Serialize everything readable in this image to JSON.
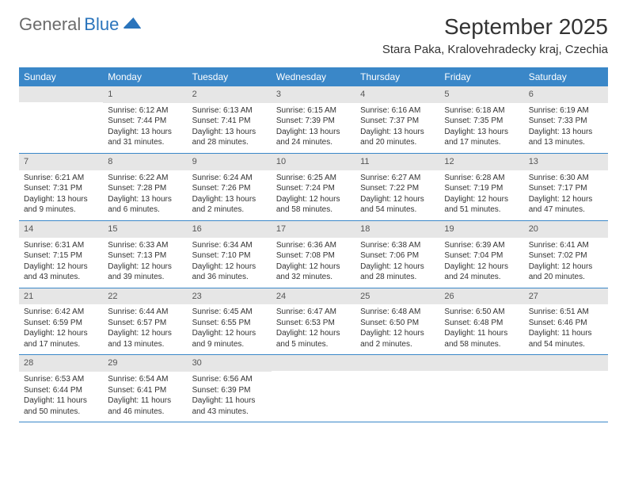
{
  "logo": {
    "text1": "General",
    "text2": "Blue"
  },
  "title": "September 2025",
  "subtitle": "Stara Paka, Kralovehradecky kraj, Czechia",
  "colors": {
    "header_bg": "#3a87c8",
    "header_fg": "#ffffff",
    "daynum_bg": "#e6e6e6",
    "daynum_fg": "#555555",
    "border": "#3a87c8",
    "logo_gray": "#6b6b6b",
    "logo_blue": "#2a74bc"
  },
  "day_headers": [
    "Sunday",
    "Monday",
    "Tuesday",
    "Wednesday",
    "Thursday",
    "Friday",
    "Saturday"
  ],
  "weeks": [
    [
      {
        "n": "",
        "sunrise": "",
        "sunset": "",
        "daylight": ""
      },
      {
        "n": "1",
        "sunrise": "Sunrise: 6:12 AM",
        "sunset": "Sunset: 7:44 PM",
        "daylight": "Daylight: 13 hours and 31 minutes."
      },
      {
        "n": "2",
        "sunrise": "Sunrise: 6:13 AM",
        "sunset": "Sunset: 7:41 PM",
        "daylight": "Daylight: 13 hours and 28 minutes."
      },
      {
        "n": "3",
        "sunrise": "Sunrise: 6:15 AM",
        "sunset": "Sunset: 7:39 PM",
        "daylight": "Daylight: 13 hours and 24 minutes."
      },
      {
        "n": "4",
        "sunrise": "Sunrise: 6:16 AM",
        "sunset": "Sunset: 7:37 PM",
        "daylight": "Daylight: 13 hours and 20 minutes."
      },
      {
        "n": "5",
        "sunrise": "Sunrise: 6:18 AM",
        "sunset": "Sunset: 7:35 PM",
        "daylight": "Daylight: 13 hours and 17 minutes."
      },
      {
        "n": "6",
        "sunrise": "Sunrise: 6:19 AM",
        "sunset": "Sunset: 7:33 PM",
        "daylight": "Daylight: 13 hours and 13 minutes."
      }
    ],
    [
      {
        "n": "7",
        "sunrise": "Sunrise: 6:21 AM",
        "sunset": "Sunset: 7:31 PM",
        "daylight": "Daylight: 13 hours and 9 minutes."
      },
      {
        "n": "8",
        "sunrise": "Sunrise: 6:22 AM",
        "sunset": "Sunset: 7:28 PM",
        "daylight": "Daylight: 13 hours and 6 minutes."
      },
      {
        "n": "9",
        "sunrise": "Sunrise: 6:24 AM",
        "sunset": "Sunset: 7:26 PM",
        "daylight": "Daylight: 13 hours and 2 minutes."
      },
      {
        "n": "10",
        "sunrise": "Sunrise: 6:25 AM",
        "sunset": "Sunset: 7:24 PM",
        "daylight": "Daylight: 12 hours and 58 minutes."
      },
      {
        "n": "11",
        "sunrise": "Sunrise: 6:27 AM",
        "sunset": "Sunset: 7:22 PM",
        "daylight": "Daylight: 12 hours and 54 minutes."
      },
      {
        "n": "12",
        "sunrise": "Sunrise: 6:28 AM",
        "sunset": "Sunset: 7:19 PM",
        "daylight": "Daylight: 12 hours and 51 minutes."
      },
      {
        "n": "13",
        "sunrise": "Sunrise: 6:30 AM",
        "sunset": "Sunset: 7:17 PM",
        "daylight": "Daylight: 12 hours and 47 minutes."
      }
    ],
    [
      {
        "n": "14",
        "sunrise": "Sunrise: 6:31 AM",
        "sunset": "Sunset: 7:15 PM",
        "daylight": "Daylight: 12 hours and 43 minutes."
      },
      {
        "n": "15",
        "sunrise": "Sunrise: 6:33 AM",
        "sunset": "Sunset: 7:13 PM",
        "daylight": "Daylight: 12 hours and 39 minutes."
      },
      {
        "n": "16",
        "sunrise": "Sunrise: 6:34 AM",
        "sunset": "Sunset: 7:10 PM",
        "daylight": "Daylight: 12 hours and 36 minutes."
      },
      {
        "n": "17",
        "sunrise": "Sunrise: 6:36 AM",
        "sunset": "Sunset: 7:08 PM",
        "daylight": "Daylight: 12 hours and 32 minutes."
      },
      {
        "n": "18",
        "sunrise": "Sunrise: 6:38 AM",
        "sunset": "Sunset: 7:06 PM",
        "daylight": "Daylight: 12 hours and 28 minutes."
      },
      {
        "n": "19",
        "sunrise": "Sunrise: 6:39 AM",
        "sunset": "Sunset: 7:04 PM",
        "daylight": "Daylight: 12 hours and 24 minutes."
      },
      {
        "n": "20",
        "sunrise": "Sunrise: 6:41 AM",
        "sunset": "Sunset: 7:02 PM",
        "daylight": "Daylight: 12 hours and 20 minutes."
      }
    ],
    [
      {
        "n": "21",
        "sunrise": "Sunrise: 6:42 AM",
        "sunset": "Sunset: 6:59 PM",
        "daylight": "Daylight: 12 hours and 17 minutes."
      },
      {
        "n": "22",
        "sunrise": "Sunrise: 6:44 AM",
        "sunset": "Sunset: 6:57 PM",
        "daylight": "Daylight: 12 hours and 13 minutes."
      },
      {
        "n": "23",
        "sunrise": "Sunrise: 6:45 AM",
        "sunset": "Sunset: 6:55 PM",
        "daylight": "Daylight: 12 hours and 9 minutes."
      },
      {
        "n": "24",
        "sunrise": "Sunrise: 6:47 AM",
        "sunset": "Sunset: 6:53 PM",
        "daylight": "Daylight: 12 hours and 5 minutes."
      },
      {
        "n": "25",
        "sunrise": "Sunrise: 6:48 AM",
        "sunset": "Sunset: 6:50 PM",
        "daylight": "Daylight: 12 hours and 2 minutes."
      },
      {
        "n": "26",
        "sunrise": "Sunrise: 6:50 AM",
        "sunset": "Sunset: 6:48 PM",
        "daylight": "Daylight: 11 hours and 58 minutes."
      },
      {
        "n": "27",
        "sunrise": "Sunrise: 6:51 AM",
        "sunset": "Sunset: 6:46 PM",
        "daylight": "Daylight: 11 hours and 54 minutes."
      }
    ],
    [
      {
        "n": "28",
        "sunrise": "Sunrise: 6:53 AM",
        "sunset": "Sunset: 6:44 PM",
        "daylight": "Daylight: 11 hours and 50 minutes."
      },
      {
        "n": "29",
        "sunrise": "Sunrise: 6:54 AM",
        "sunset": "Sunset: 6:41 PM",
        "daylight": "Daylight: 11 hours and 46 minutes."
      },
      {
        "n": "30",
        "sunrise": "Sunrise: 6:56 AM",
        "sunset": "Sunset: 6:39 PM",
        "daylight": "Daylight: 11 hours and 43 minutes."
      },
      {
        "n": "",
        "sunrise": "",
        "sunset": "",
        "daylight": ""
      },
      {
        "n": "",
        "sunrise": "",
        "sunset": "",
        "daylight": ""
      },
      {
        "n": "",
        "sunrise": "",
        "sunset": "",
        "daylight": ""
      },
      {
        "n": "",
        "sunrise": "",
        "sunset": "",
        "daylight": ""
      }
    ]
  ]
}
